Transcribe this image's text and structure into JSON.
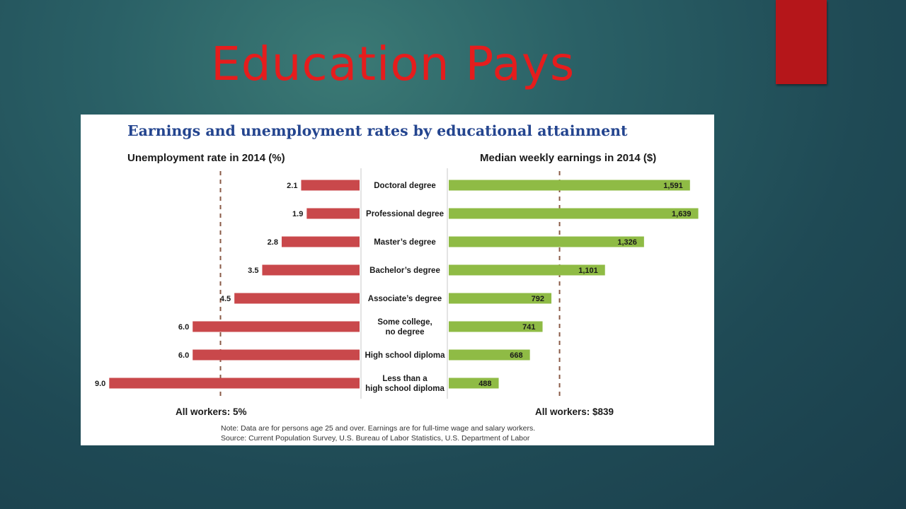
{
  "slide": {
    "title": "Education Pays",
    "title_color": "#e51d1d",
    "accent_color": "#b5161a"
  },
  "chart_data": {
    "type": "bar",
    "title": "Earnings and unemployment rates by educational attainment",
    "categories": [
      "Doctoral degree",
      "Professional degree",
      "Master's degree",
      "Bachelor's degree",
      "Associate's degree",
      "Some college, no degree",
      "High school diploma",
      "Less than a high school diploma"
    ],
    "category_lines": [
      [
        "Doctoral degree"
      ],
      [
        "Professional degree"
      ],
      [
        "Master’s degree"
      ],
      [
        "Bachelor’s degree"
      ],
      [
        "Associate’s degree"
      ],
      [
        "Some college,",
        "no degree"
      ],
      [
        "High school diploma"
      ],
      [
        "Less than a",
        "high school diploma"
      ]
    ],
    "series": [
      {
        "name": "Unemployment rate in 2014 (%)",
        "values": [
          2.1,
          1.9,
          2.8,
          3.5,
          4.5,
          6.0,
          6.0,
          9.0
        ],
        "labels": [
          "2.1",
          "1.9",
          "2.8",
          "3.5",
          "4.5",
          "6.0",
          "6.0",
          "9.0"
        ],
        "color": "#c9484b",
        "direction": "left",
        "reference": 5,
        "reference_label": "All workers: 5%"
      },
      {
        "name": "Median weekly earnings in 2014 ($)",
        "values": [
          1591,
          1639,
          1326,
          1101,
          792,
          741,
          668,
          488
        ],
        "labels": [
          "1,591",
          "1,639",
          "1,326",
          "1,101",
          "792",
          "741",
          "668",
          "488"
        ],
        "color": "#8fbb45",
        "direction": "right",
        "reference": 839,
        "reference_label": "All workers: $839"
      }
    ],
    "reference_line_color": "#8a5a46",
    "note": "Note: Data are for persons age 25 and over. Earnings are for full-time wage and salary workers.",
    "source": "Source: Current Population Survey, U.S. Bureau of Labor Statistics, U.S. Department of Labor"
  }
}
